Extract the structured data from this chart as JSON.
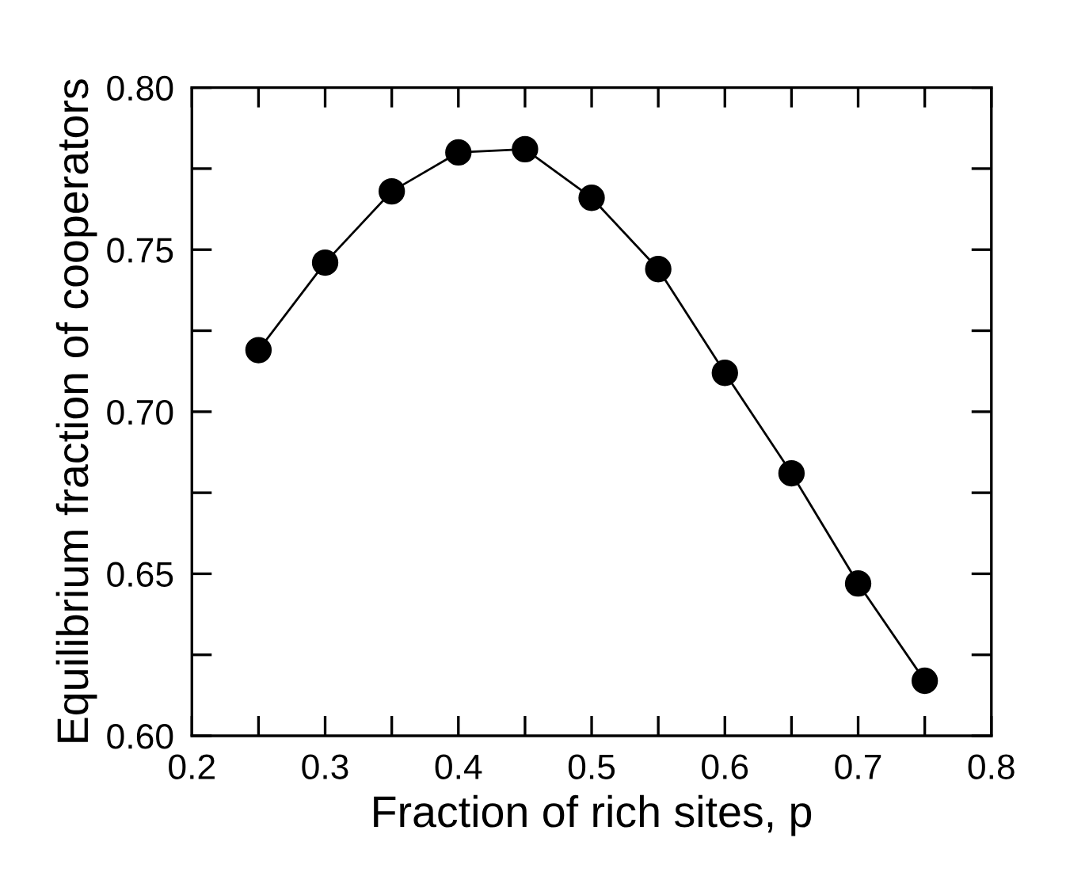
{
  "chart_data": {
    "type": "line",
    "xlabel": "Fraction of rich sites, p",
    "ylabel": "Equilibrium fraction of cooperators",
    "x": [
      0.25,
      0.3,
      0.35,
      0.4,
      0.45,
      0.5,
      0.55,
      0.6,
      0.65,
      0.7,
      0.75
    ],
    "series": [
      {
        "color": "#000000",
        "values": [
          0.719,
          0.746,
          0.768,
          0.78,
          0.781,
          0.766,
          0.744,
          0.712,
          0.681,
          0.647,
          0.617
        ]
      }
    ],
    "marker": "circle",
    "line_style": "solid",
    "grid": false,
    "legend": false,
    "xlim": [
      0.2,
      0.8
    ],
    "ylim": [
      0.6,
      0.8
    ],
    "xticks": [
      {
        "value": 0.2,
        "label": "0.2"
      },
      {
        "value": 0.25,
        "label": null
      },
      {
        "value": 0.3,
        "label": "0.3"
      },
      {
        "value": 0.35,
        "label": null
      },
      {
        "value": 0.4,
        "label": "0.4"
      },
      {
        "value": 0.45,
        "label": null
      },
      {
        "value": 0.5,
        "label": "0.5"
      },
      {
        "value": 0.55,
        "label": null
      },
      {
        "value": 0.6,
        "label": "0.6"
      },
      {
        "value": 0.65,
        "label": null
      },
      {
        "value": 0.7,
        "label": "0.7"
      },
      {
        "value": 0.75,
        "label": null
      },
      {
        "value": 0.8,
        "label": "0.8"
      }
    ],
    "yticks": [
      {
        "value": 0.6,
        "label": "0.60"
      },
      {
        "value": 0.625,
        "label": null
      },
      {
        "value": 0.65,
        "label": "0.65"
      },
      {
        "value": 0.675,
        "label": null
      },
      {
        "value": 0.7,
        "label": "0.70"
      },
      {
        "value": 0.725,
        "label": null
      },
      {
        "value": 0.75,
        "label": "0.75"
      },
      {
        "value": 0.775,
        "label": null
      },
      {
        "value": 0.8,
        "label": "0.80"
      }
    ]
  }
}
